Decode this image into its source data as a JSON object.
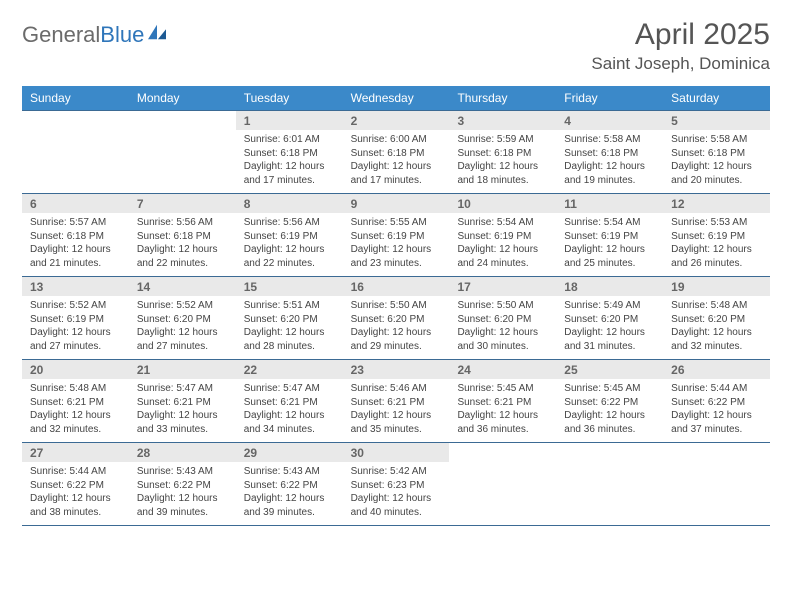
{
  "brand": {
    "part1": "General",
    "part2": "Blue"
  },
  "title": "April 2025",
  "location": "Saint Joseph, Dominica",
  "colors": {
    "header_bg": "#3b89c9",
    "header_text": "#ffffff",
    "rule": "#3b6a94",
    "daynum_bg": "#e9e9e9",
    "daynum_text": "#666666",
    "body_text": "#444444",
    "brand_gray": "#6b6b6b",
    "brand_blue": "#2f76ba"
  },
  "day_names": [
    "Sunday",
    "Monday",
    "Tuesday",
    "Wednesday",
    "Thursday",
    "Friday",
    "Saturday"
  ],
  "weeks": [
    [
      null,
      null,
      {
        "n": 1,
        "sr": "6:01 AM",
        "ss": "6:18 PM",
        "dl": "12 hours and 17 minutes."
      },
      {
        "n": 2,
        "sr": "6:00 AM",
        "ss": "6:18 PM",
        "dl": "12 hours and 17 minutes."
      },
      {
        "n": 3,
        "sr": "5:59 AM",
        "ss": "6:18 PM",
        "dl": "12 hours and 18 minutes."
      },
      {
        "n": 4,
        "sr": "5:58 AM",
        "ss": "6:18 PM",
        "dl": "12 hours and 19 minutes."
      },
      {
        "n": 5,
        "sr": "5:58 AM",
        "ss": "6:18 PM",
        "dl": "12 hours and 20 minutes."
      }
    ],
    [
      {
        "n": 6,
        "sr": "5:57 AM",
        "ss": "6:18 PM",
        "dl": "12 hours and 21 minutes."
      },
      {
        "n": 7,
        "sr": "5:56 AM",
        "ss": "6:18 PM",
        "dl": "12 hours and 22 minutes."
      },
      {
        "n": 8,
        "sr": "5:56 AM",
        "ss": "6:19 PM",
        "dl": "12 hours and 22 minutes."
      },
      {
        "n": 9,
        "sr": "5:55 AM",
        "ss": "6:19 PM",
        "dl": "12 hours and 23 minutes."
      },
      {
        "n": 10,
        "sr": "5:54 AM",
        "ss": "6:19 PM",
        "dl": "12 hours and 24 minutes."
      },
      {
        "n": 11,
        "sr": "5:54 AM",
        "ss": "6:19 PM",
        "dl": "12 hours and 25 minutes."
      },
      {
        "n": 12,
        "sr": "5:53 AM",
        "ss": "6:19 PM",
        "dl": "12 hours and 26 minutes."
      }
    ],
    [
      {
        "n": 13,
        "sr": "5:52 AM",
        "ss": "6:19 PM",
        "dl": "12 hours and 27 minutes."
      },
      {
        "n": 14,
        "sr": "5:52 AM",
        "ss": "6:20 PM",
        "dl": "12 hours and 27 minutes."
      },
      {
        "n": 15,
        "sr": "5:51 AM",
        "ss": "6:20 PM",
        "dl": "12 hours and 28 minutes."
      },
      {
        "n": 16,
        "sr": "5:50 AM",
        "ss": "6:20 PM",
        "dl": "12 hours and 29 minutes."
      },
      {
        "n": 17,
        "sr": "5:50 AM",
        "ss": "6:20 PM",
        "dl": "12 hours and 30 minutes."
      },
      {
        "n": 18,
        "sr": "5:49 AM",
        "ss": "6:20 PM",
        "dl": "12 hours and 31 minutes."
      },
      {
        "n": 19,
        "sr": "5:48 AM",
        "ss": "6:20 PM",
        "dl": "12 hours and 32 minutes."
      }
    ],
    [
      {
        "n": 20,
        "sr": "5:48 AM",
        "ss": "6:21 PM",
        "dl": "12 hours and 32 minutes."
      },
      {
        "n": 21,
        "sr": "5:47 AM",
        "ss": "6:21 PM",
        "dl": "12 hours and 33 minutes."
      },
      {
        "n": 22,
        "sr": "5:47 AM",
        "ss": "6:21 PM",
        "dl": "12 hours and 34 minutes."
      },
      {
        "n": 23,
        "sr": "5:46 AM",
        "ss": "6:21 PM",
        "dl": "12 hours and 35 minutes."
      },
      {
        "n": 24,
        "sr": "5:45 AM",
        "ss": "6:21 PM",
        "dl": "12 hours and 36 minutes."
      },
      {
        "n": 25,
        "sr": "5:45 AM",
        "ss": "6:22 PM",
        "dl": "12 hours and 36 minutes."
      },
      {
        "n": 26,
        "sr": "5:44 AM",
        "ss": "6:22 PM",
        "dl": "12 hours and 37 minutes."
      }
    ],
    [
      {
        "n": 27,
        "sr": "5:44 AM",
        "ss": "6:22 PM",
        "dl": "12 hours and 38 minutes."
      },
      {
        "n": 28,
        "sr": "5:43 AM",
        "ss": "6:22 PM",
        "dl": "12 hours and 39 minutes."
      },
      {
        "n": 29,
        "sr": "5:43 AM",
        "ss": "6:22 PM",
        "dl": "12 hours and 39 minutes."
      },
      {
        "n": 30,
        "sr": "5:42 AM",
        "ss": "6:23 PM",
        "dl": "12 hours and 40 minutes."
      },
      null,
      null,
      null
    ]
  ],
  "labels": {
    "sunrise": "Sunrise:",
    "sunset": "Sunset:",
    "daylight": "Daylight:"
  }
}
